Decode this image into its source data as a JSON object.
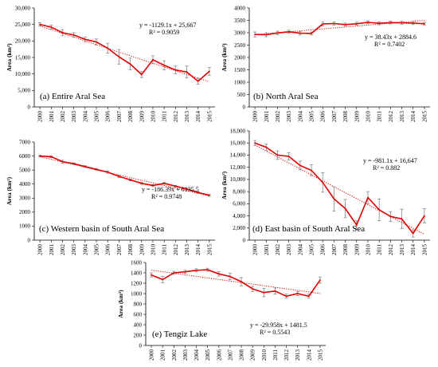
{
  "chart_data": [
    {
      "type": "line",
      "label": "(a) Entire Aral Sea",
      "ylabel": "Area (km²)",
      "ylim": [
        0,
        30000
      ],
      "ytick_step": 5000,
      "ytick_labels": [
        "0",
        "5,000",
        "10,000",
        "15,000",
        "20,000",
        "25,000",
        "30,000"
      ],
      "x": [
        "2000",
        "2001",
        "2002",
        "2003",
        "2004",
        "2005",
        "2006",
        "2007",
        "2008",
        "2009",
        "2010",
        "2011",
        "2012",
        "2013",
        "2014",
        "2015"
      ],
      "series": [
        {
          "values": [
            25000,
            24200,
            22500,
            21800,
            20500,
            19700,
            17800,
            15200,
            13000,
            9800,
            14300,
            12600,
            11200,
            10600,
            7800,
            10800
          ],
          "errors": [
            500,
            600,
            900,
            700,
            700,
            900,
            1500,
            2200,
            1800,
            900,
            1200,
            1400,
            1200,
            1800,
            900,
            1200
          ]
        }
      ],
      "trend": {
        "slope": -1129.1,
        "intercept": 25667,
        "equation": "y = -1129.1x + 25,667",
        "r2": "R² = 0.9059"
      },
      "color": "#e00000"
    },
    {
      "type": "line",
      "label": "(b) North Aral Sea",
      "ylabel": "Area (km²)",
      "ylim": [
        0,
        4000
      ],
      "ytick_step": 500,
      "ytick_labels": [
        "0",
        "500",
        "1000",
        "1500",
        "2000",
        "2500",
        "3000",
        "3500",
        "4000"
      ],
      "x": [
        "2000",
        "2001",
        "2002",
        "2003",
        "2004",
        "2005",
        "2006",
        "2007",
        "2008",
        "2009",
        "2010",
        "2011",
        "2012",
        "2013",
        "2014",
        "2015"
      ],
      "series": [
        {
          "values": [
            2930,
            2920,
            2990,
            3040,
            2980,
            2970,
            3350,
            3370,
            3330,
            3360,
            3420,
            3380,
            3410,
            3400,
            3390,
            3360
          ],
          "errors": [
            100,
            80,
            70,
            60,
            70,
            60,
            80,
            60,
            60,
            60,
            60,
            60,
            60,
            60,
            60,
            60
          ]
        }
      ],
      "trend": {
        "slope": 38.43,
        "intercept": 2884.6,
        "equation": "y = 38.43x + 2884.6",
        "r2": "R² = 0.7402"
      },
      "color": "#e00000"
    },
    {
      "type": "line",
      "label": "(c) Western basin of South Aral Sea",
      "ylabel": "Area (km²)",
      "ylim": [
        0,
        7000
      ],
      "ytick_step": 1000,
      "ytick_labels": [
        "0",
        "1000",
        "2000",
        "3000",
        "4000",
        "5000",
        "6000",
        "7000"
      ],
      "x": [
        "2000",
        "2001",
        "2002",
        "2003",
        "2004",
        "2005",
        "2006",
        "2007",
        "2008",
        "2009",
        "2010",
        "2011",
        "2012",
        "2013",
        "2014",
        "2015"
      ],
      "series": [
        {
          "values": [
            6000,
            5950,
            5600,
            5450,
            5250,
            5050,
            4850,
            4550,
            4300,
            4050,
            3900,
            4050,
            3850,
            3650,
            3400,
            3200
          ],
          "errors": [
            60,
            60,
            100,
            60,
            60,
            60,
            80,
            80,
            60,
            60,
            60,
            60,
            60,
            60,
            60,
            60
          ]
        }
      ],
      "trend": {
        "slope": -186.39,
        "intercept": 6135.5,
        "equation": "y = -186.39x + 6135.5",
        "r2": "R² = 0.9748"
      },
      "color": "#e00000"
    },
    {
      "type": "line",
      "label": "(d) East basin of South Aral Sea",
      "ylabel": "Area (km²)",
      "ylim": [
        0,
        18000
      ],
      "ytick_step": 2000,
      "ytick_labels": [
        "0",
        "2,000",
        "4,000",
        "6,000",
        "8,000",
        "10,000",
        "12,000",
        "14,000",
        "16,000",
        "18,000"
      ],
      "x": [
        "2000",
        "2001",
        "2002",
        "2003",
        "2004",
        "2005",
        "2006",
        "2007",
        "2008",
        "2009",
        "2010",
        "2011",
        "2012",
        "2013",
        "2014",
        "2015"
      ],
      "series": [
        {
          "values": [
            16000,
            15300,
            14000,
            13800,
            12300,
            11500,
            9500,
            6800,
            5200,
            2500,
            7000,
            5000,
            3900,
            3500,
            1100,
            4000
          ],
          "errors": [
            400,
            500,
            700,
            600,
            700,
            900,
            1600,
            2000,
            1500,
            700,
            1000,
            1800,
            800,
            1600,
            600,
            1200
          ]
        }
      ],
      "trend": {
        "slope": -981.1,
        "intercept": 16647,
        "equation": "y = -981.1x + 16,647",
        "r2": "R² = 0.882"
      },
      "color": "#e00000"
    },
    {
      "type": "line",
      "label": "(e) Tengiz Lake",
      "ylabel": "Area (km²)",
      "ylim": [
        0,
        1600
      ],
      "ytick_step": 200,
      "ytick_labels": [
        "0",
        "200",
        "400",
        "600",
        "800",
        "1000",
        "1200",
        "1400",
        "1600"
      ],
      "x": [
        "2000",
        "2001",
        "2002",
        "2003",
        "2004",
        "2005",
        "2006",
        "2007",
        "2008",
        "2009",
        "2010",
        "2011",
        "2012",
        "2013",
        "2014",
        "2015"
      ],
      "series": [
        {
          "values": [
            1360,
            1270,
            1400,
            1420,
            1450,
            1460,
            1380,
            1330,
            1230,
            1090,
            1020,
            1050,
            950,
            1000,
            950,
            1260
          ],
          "errors": [
            40,
            60,
            30,
            30,
            30,
            30,
            40,
            60,
            80,
            50,
            80,
            60,
            40,
            40,
            40,
            60
          ]
        }
      ],
      "trend": {
        "slope": -29.958,
        "intercept": 1481.5,
        "equation": "y = -29.958x + 1481.5",
        "r2": "R² = 0.5543"
      },
      "color": "#e00000"
    }
  ]
}
